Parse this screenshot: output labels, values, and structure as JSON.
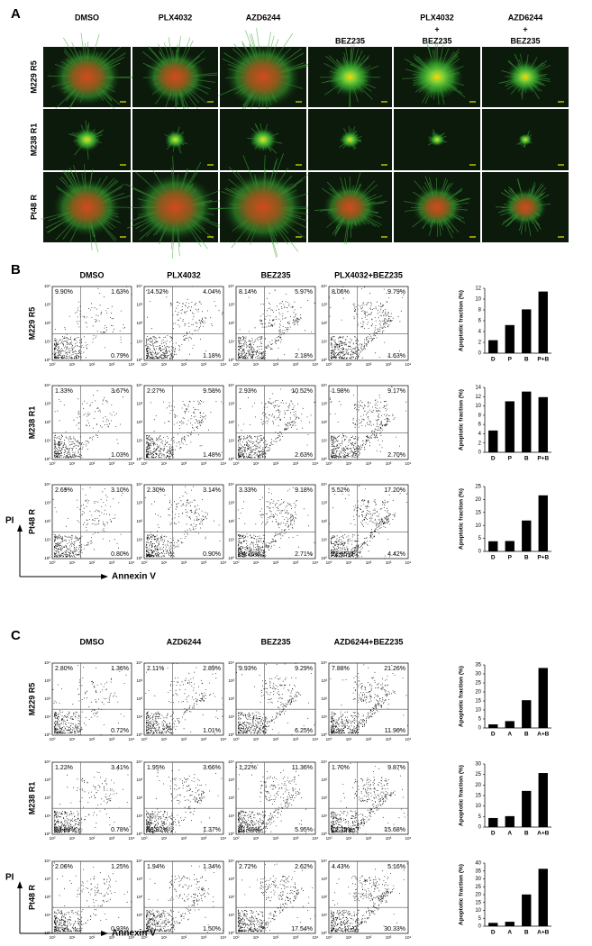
{
  "panel_a": {
    "label": "A",
    "columns": [
      [
        "DMSO"
      ],
      [
        "PLX4032"
      ],
      [
        "AZD6244"
      ],
      [
        "BEZ235"
      ],
      [
        "PLX4032",
        "+",
        "BEZ235"
      ],
      [
        "AZD6244",
        "+",
        "BEZ235"
      ]
    ],
    "rows": [
      "M229 R5",
      "M238 R1",
      "Pt48 R"
    ]
  },
  "flow_axis_ticks": [
    "10⁰",
    "10¹",
    "10²",
    "10³",
    "10⁴"
  ],
  "panel_b": {
    "label": "B",
    "columns": [
      "DMSO",
      "PLX4032",
      "BEZ235",
      "PLX4032+BEZ235"
    ],
    "rows": [
      "M229 R5",
      "M238 R1",
      "Pt48 R"
    ],
    "y_axis": "PI",
    "x_axis": "Annexin V",
    "quadrants": [
      [
        {
          "ul": "9.90%",
          "ur": "1.63%",
          "lr": "0.79%"
        },
        {
          "ul": "14.52%",
          "ur": "4.04%",
          "lr": "1.18%"
        },
        {
          "ul": "8.14%",
          "ur": "5.97%",
          "lr": "2.18%"
        },
        {
          "ul": "8.06%",
          "ur": "9.79%",
          "lr": "1.63%"
        }
      ],
      [
        {
          "ul": "1.33%",
          "ur": "3.67%",
          "lr": "1.03%"
        },
        {
          "ul": "2.27%",
          "ur": "9.58%",
          "lr": "1.48%"
        },
        {
          "ul": "2.93%",
          "ur": "10.52%",
          "lr": "2.63%"
        },
        {
          "ul": "1.98%",
          "ur": "9.17%",
          "lr": "2.70%"
        }
      ],
      [
        {
          "ul": "2.69%",
          "ur": "3.10%",
          "lr": "0.80%"
        },
        {
          "ul": "2.30%",
          "ur": "3.14%",
          "lr": "0.90%"
        },
        {
          "ul": "3.33%",
          "ur": "9.18%",
          "lr": "2.71%",
          "ll": "84.36%"
        },
        {
          "ul": "5.52%",
          "ur": "17.20%",
          "lr": "4.42%",
          "ll": "72.65%"
        }
      ]
    ]
  },
  "panel_c": {
    "label": "C",
    "columns": [
      "DMSO",
      "AZD6244",
      "BEZ235",
      "AZD6244+BEZ235"
    ],
    "rows": [
      "M229 R5",
      "M238 R1",
      "Pt48 R"
    ],
    "y_axis": "PI",
    "x_axis": "Annexin V",
    "quadrants": [
      [
        {
          "ul": "2.80%",
          "ur": "1.36%",
          "lr": "0.72%"
        },
        {
          "ul": "2.11%",
          "ur": "2.89%",
          "lr": "1.01%"
        },
        {
          "ul": "9.93%",
          "ur": "9.29%",
          "lr": "6.25%"
        },
        {
          "ul": "7.88%",
          "ur": "21.26%",
          "lr": "11.96%"
        }
      ],
      [
        {
          "ul": "1.22%",
          "ur": "3.41%",
          "lr": "0.78%",
          "ll": "84.58%"
        },
        {
          "ul": "1.95%",
          "ur": "3.66%",
          "lr": "1.37%",
          "ll": "93.02%"
        },
        {
          "ul": "1.22%",
          "ur": "11.36%",
          "lr": "5.95%",
          "ll": "81.46%"
        },
        {
          "ul": "1.70%",
          "ur": "9.87%",
          "lr": "15.68%",
          "ll": "72.75%"
        }
      ],
      [
        {
          "ul": "2.06%",
          "ur": "1.25%",
          "lr": "0.93%"
        },
        {
          "ul": "1.94%",
          "ur": "1.34%",
          "lr": "1.50%"
        },
        {
          "ul": "2.72%",
          "ur": "2.62%",
          "lr": "17.54%"
        },
        {
          "ul": "4.43%",
          "ur": "5.16%",
          "lr": "30.33%"
        }
      ]
    ]
  },
  "chart_data": [
    {
      "type": "bar",
      "ylabel": "Apoptotic fraction (%)",
      "categories": [
        "D",
        "P",
        "B",
        "P+B"
      ],
      "values": [
        2.4,
        5.2,
        8.1,
        11.4
      ],
      "ylim": [
        0,
        12
      ],
      "yticks": [
        0,
        2,
        4,
        6,
        8,
        10,
        12
      ],
      "color": "#000000"
    },
    {
      "type": "bar",
      "ylabel": "Apoptotic fraction (%)",
      "categories": [
        "D",
        "P",
        "B",
        "P+B"
      ],
      "values": [
        4.7,
        11,
        13.1,
        11.9
      ],
      "ylim": [
        0,
        14
      ],
      "yticks": [
        0,
        2,
        4,
        6,
        8,
        10,
        12,
        14
      ],
      "color": "#000000"
    },
    {
      "type": "bar",
      "ylabel": "Apoptotic fraction (%)",
      "categories": [
        "D",
        "P",
        "B",
        "P+B"
      ],
      "values": [
        3.9,
        4.0,
        11.9,
        21.6
      ],
      "ylim": [
        0,
        25
      ],
      "yticks": [
        0,
        5,
        10,
        15,
        20,
        25
      ],
      "color": "#000000"
    },
    {
      "type": "bar",
      "ylabel": "Apoptotic fraction (%)",
      "categories": [
        "D",
        "A",
        "B",
        "A+B"
      ],
      "values": [
        2,
        3.8,
        15.4,
        33.3
      ],
      "ylim": [
        0,
        35
      ],
      "yticks": [
        0,
        5,
        10,
        15,
        20,
        25,
        30,
        35
      ],
      "color": "#000000"
    },
    {
      "type": "bar",
      "ylabel": "Apoptotic fraction (%)",
      "categories": [
        "D",
        "A",
        "B",
        "A+B"
      ],
      "values": [
        4.3,
        5.2,
        17.2,
        25.7
      ],
      "ylim": [
        0,
        30
      ],
      "yticks": [
        0,
        5,
        10,
        15,
        20,
        25,
        30
      ],
      "color": "#000000"
    },
    {
      "type": "bar",
      "ylabel": "Apoptotic fraction (%)",
      "categories": [
        "D",
        "A",
        "B",
        "A+B"
      ],
      "values": [
        2.1,
        2.8,
        20.1,
        36.4
      ],
      "ylim": [
        0,
        40
      ],
      "yticks": [
        0,
        5,
        10,
        15,
        20,
        25,
        30,
        35,
        40
      ],
      "color": "#000000"
    }
  ]
}
